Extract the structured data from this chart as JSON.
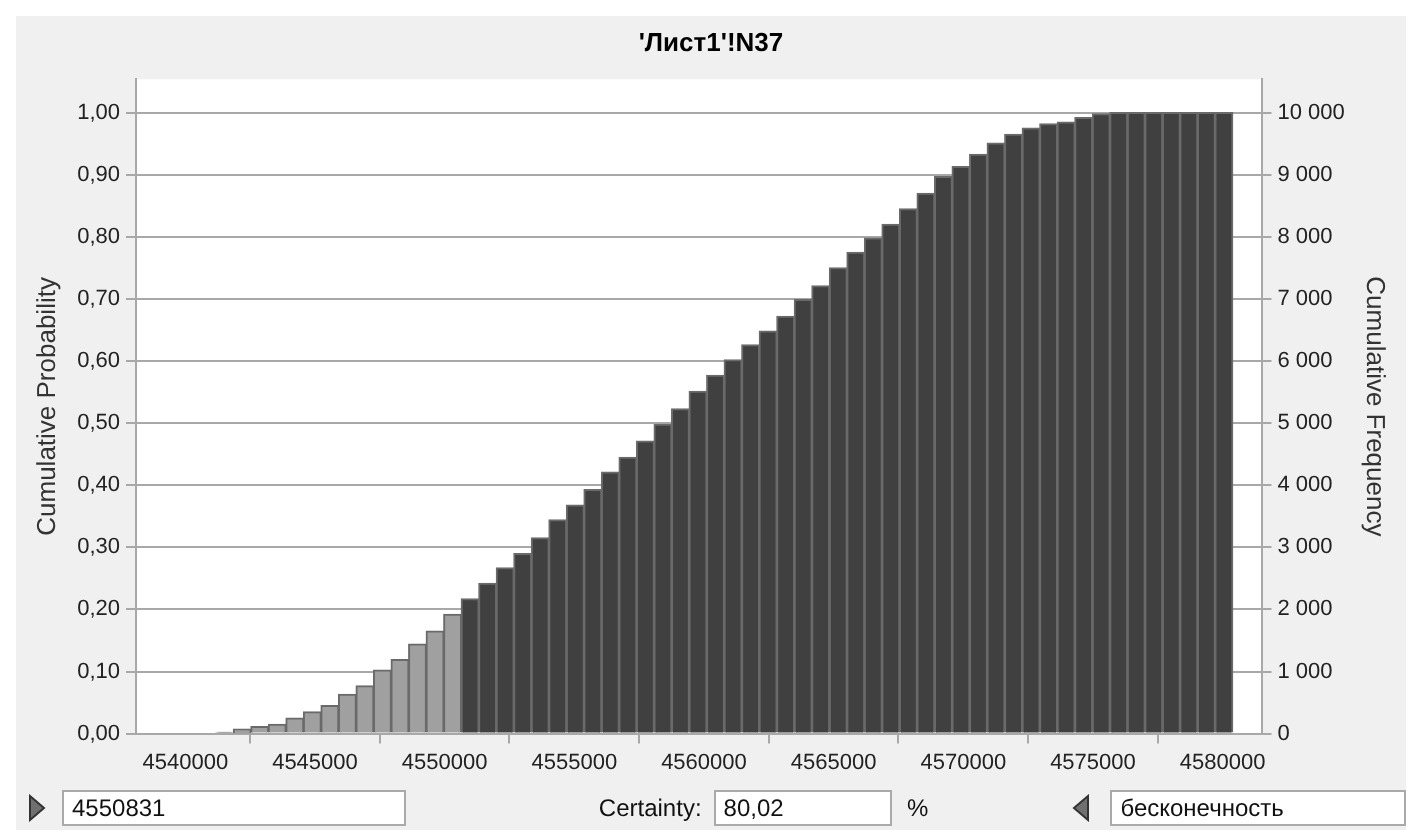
{
  "chart_data": {
    "type": "histogram",
    "title": "'Лист1'!N37",
    "ylabel": "Cumulative Probability",
    "y2label": "Cumulative Frequency",
    "bins": [
      4541180,
      4541856,
      4542532,
      4543208,
      4543884,
      4544560,
      4545236,
      4545912,
      4546588,
      4547264,
      4547940,
      4548616,
      4549292,
      4549968,
      4550644,
      4551320,
      4551996,
      4552672,
      4553348,
      4554024,
      4554700,
      4555376,
      4556052,
      4556728,
      4557404,
      4558080,
      4558756,
      4559432,
      4560108,
      4560784,
      4561460,
      4562136,
      4562812,
      4563488,
      4564164,
      4564840,
      4565516,
      4566192,
      4566868,
      4567544,
      4568220,
      4568896,
      4569572,
      4570248,
      4570924,
      4571600,
      4572276,
      4572952,
      4573628,
      4574304,
      4574980,
      4575656,
      4576332,
      4577008,
      4577684,
      4578360,
      4579036,
      4579712,
      4580388
    ],
    "values": [
      0.002,
      0.007,
      0.011,
      0.015,
      0.025,
      0.035,
      0.045,
      0.063,
      0.077,
      0.102,
      0.119,
      0.144,
      0.165,
      0.192,
      0.217,
      0.242,
      0.267,
      0.29,
      0.315,
      0.344,
      0.368,
      0.393,
      0.421,
      0.445,
      0.471,
      0.498,
      0.523,
      0.551,
      0.577,
      0.602,
      0.626,
      0.648,
      0.672,
      0.699,
      0.721,
      0.75,
      0.775,
      0.798,
      0.82,
      0.845,
      0.87,
      0.897,
      0.913,
      0.933,
      0.951,
      0.965,
      0.975,
      0.982,
      0.985,
      0.992,
      0.998,
      1,
      1,
      1,
      1,
      1,
      1,
      1
    ],
    "colors": [
      "#a0a0a0",
      "#a0a0a0",
      "#a0a0a0",
      "#a0a0a0",
      "#a0a0a0",
      "#a0a0a0",
      "#a0a0a0",
      "#a0a0a0",
      "#a0a0a0",
      "#a0a0a0",
      "#a0a0a0",
      "#a0a0a0",
      "#a0a0a0",
      "#a0a0a0",
      "#404040",
      "#404040",
      "#404040",
      "#404040",
      "#404040",
      "#404040",
      "#404040",
      "#404040",
      "#404040",
      "#404040",
      "#404040",
      "#404040",
      "#404040",
      "#404040",
      "#404040",
      "#404040",
      "#404040",
      "#404040",
      "#404040",
      "#404040",
      "#404040",
      "#404040",
      "#404040",
      "#404040",
      "#404040",
      "#404040",
      "#404040",
      "#404040",
      "#404040",
      "#404040",
      "#404040",
      "#404040",
      "#404040",
      "#404040",
      "#404040",
      "#404040",
      "#404040",
      "#404040",
      "#404040",
      "#404040",
      "#404040",
      "#404040",
      "#404040",
      "#404040"
    ],
    "xlim": [
      4538100,
      4581500
    ],
    "xticks": [
      4540000,
      4545000,
      4550000,
      4555000,
      4560000,
      4565000,
      4570000,
      4575000,
      4580000
    ],
    "ylim": [
      0,
      1.054
    ],
    "yticks": [
      {
        "value": 0,
        "label": "0,00"
      },
      {
        "value": 0.1,
        "label": "0,10"
      },
      {
        "value": 0.2,
        "label": "0,20"
      },
      {
        "value": 0.3,
        "label": "0,30"
      },
      {
        "value": 0.4,
        "label": "0,40"
      },
      {
        "value": 0.5,
        "label": "0,50"
      },
      {
        "value": 0.6,
        "label": "0,60"
      },
      {
        "value": 0.7,
        "label": "0,70"
      },
      {
        "value": 0.8,
        "label": "0,80"
      },
      {
        "value": 0.9,
        "label": "0,90"
      },
      {
        "value": 1,
        "label": "1,00"
      }
    ],
    "y2lim": [
      0,
      10540
    ],
    "y2ticks": [
      0,
      {
        "value": 1000,
        "label": "1 000"
      },
      {
        "value": 2000,
        "label": "2 000"
      },
      {
        "value": 3000,
        "label": "3 000"
      },
      {
        "value": 4000,
        "label": "4 000"
      },
      {
        "value": 5000,
        "label": "5 000"
      },
      {
        "value": 6000,
        "label": "6 000"
      },
      {
        "value": 7000,
        "label": "7 000"
      },
      {
        "value": 8000,
        "label": "8 000"
      },
      {
        "value": 9000,
        "label": "9 000"
      },
      {
        "value": 10000,
        "label": "10 000"
      }
    ],
    "grid": "y",
    "legend": false,
    "annotations": [
      "4550831",
      "Certainty:",
      "80,02",
      "%",
      "бесконечность"
    ]
  }
}
